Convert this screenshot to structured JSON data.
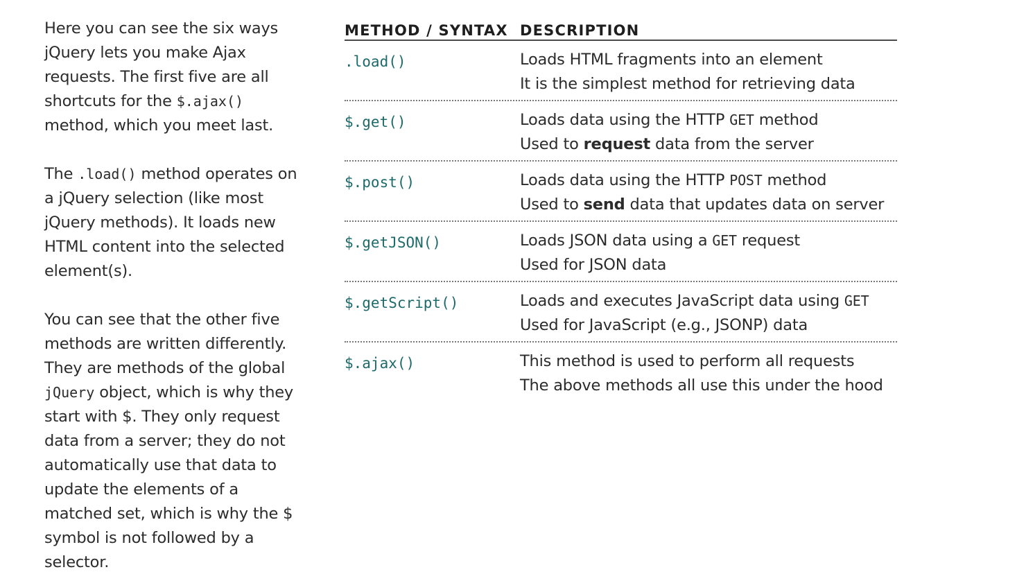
{
  "sidebar": {
    "p1": {
      "t1": "Here you can see the six ways jQuery lets you make Ajax requests. The first five are all shortcuts for the ",
      "code": "$.ajax()",
      "t2": " method, which you meet last."
    },
    "p2": {
      "t1": "The ",
      "code": ".load()",
      "t2": " method operates on a jQuery selection (like most jQuery methods). It loads new HTML content into the selected element(s)."
    },
    "p3": {
      "t1": "You can see that the other five methods are written differently. They are methods of the global ",
      "code": "jQuery",
      "t2": " object, which is why they start with $. They only request data from a server; they do not automatically use that data to update the elements of a matched set, which is why the $ symbol is not followed by a selector."
    }
  },
  "table": {
    "headers": {
      "method": "METHOD / SYNTAX",
      "description": "DESCRIPTION"
    },
    "rows": [
      {
        "method": ".load()",
        "line1": "Loads HTML fragments into an element",
        "line2": "It is the simplest method for retrieving data"
      },
      {
        "method": "$.get()",
        "line1_a": "Loads data using the HTTP ",
        "line1_code": "GET",
        "line1_b": " method",
        "line2_a": "Used to ",
        "line2_bold": "request",
        "line2_b": " data from the server"
      },
      {
        "method": "$.post()",
        "line1_a": "Loads data using the HTTP ",
        "line1_code": "POST",
        "line1_b": " method",
        "line2_a": "Used to ",
        "line2_bold": "send",
        "line2_b": " data that updates data on server"
      },
      {
        "method": "$.getJSON()",
        "line1_a": "Loads JSON data using a ",
        "line1_code": "GET",
        "line1_b": " request",
        "line2": "Used for JSON data"
      },
      {
        "method": "$.getScript()",
        "line1_a": "Loads and executes JavaScript data using ",
        "line1_code": "GET",
        "line2": "Used for JavaScript (e.g., JSONP) data"
      },
      {
        "method": "$.ajax()",
        "line1": "This method is used to perform all requests",
        "line2": "The above methods all use this under the hood"
      }
    ]
  }
}
